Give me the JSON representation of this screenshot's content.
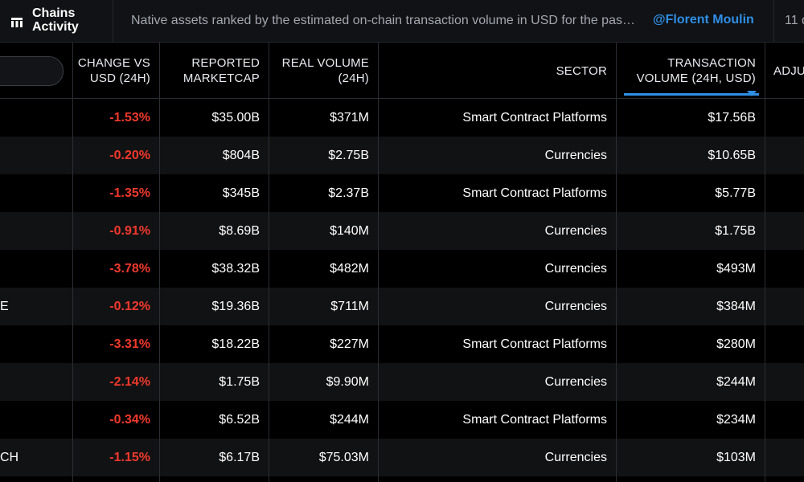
{
  "app": {
    "title": "Chains\nActivity",
    "subtitle": "Native assets ranked by the estimated on-chain transaction volume in USD for the past 24 hours",
    "author": "@Florent Moulin",
    "date": "11 d",
    "icon": "table-icon"
  },
  "colors": {
    "background": "#000000",
    "accent": "#2f8fe6",
    "negative": "#f0392b"
  },
  "table": {
    "headers": {
      "change": "CHANGE VS\nUSD (24H)",
      "marketcap": "REPORTED\nMARKETCAP",
      "real_volume": "REAL VOLUME\n(24H)",
      "sector": "SECTOR",
      "tx_volume": "TRANSACTION\nVOLUME (24H, USD)",
      "adjusted": "ADJU"
    },
    "sorted_column": "tx_volume",
    "sort_direction": "descending",
    "rows": [
      {
        "name": "",
        "change": "-1.53%",
        "marketcap": "$35.00B",
        "real_volume": "$371M",
        "sector": "Smart Contract Platforms",
        "tx_volume": "$17.56B"
      },
      {
        "name": "",
        "change": "-0.20%",
        "marketcap": "$804B",
        "real_volume": "$2.75B",
        "sector": "Currencies",
        "tx_volume": "$10.65B"
      },
      {
        "name": "",
        "change": "-1.35%",
        "marketcap": "$345B",
        "real_volume": "$2.37B",
        "sector": "Smart Contract Platforms",
        "tx_volume": "$5.77B"
      },
      {
        "name": "",
        "change": "-0.91%",
        "marketcap": "$8.69B",
        "real_volume": "$140M",
        "sector": "Currencies",
        "tx_volume": "$1.75B"
      },
      {
        "name": "",
        "change": "-3.78%",
        "marketcap": "$38.32B",
        "real_volume": "$482M",
        "sector": "Currencies",
        "tx_volume": "$493M"
      },
      {
        "name": "E",
        "change": "-0.12%",
        "marketcap": "$19.36B",
        "real_volume": "$711M",
        "sector": "Currencies",
        "tx_volume": "$384M"
      },
      {
        "name": "",
        "change": "-3.31%",
        "marketcap": "$18.22B",
        "real_volume": "$227M",
        "sector": "Smart Contract Platforms",
        "tx_volume": "$280M"
      },
      {
        "name": "",
        "change": "-2.14%",
        "marketcap": "$1.75B",
        "real_volume": "$9.90M",
        "sector": "Currencies",
        "tx_volume": "$244M"
      },
      {
        "name": "",
        "change": "-0.34%",
        "marketcap": "$6.52B",
        "real_volume": "$244M",
        "sector": "Smart Contract Platforms",
        "tx_volume": "$234M"
      },
      {
        "name": "CH",
        "change": "-1.15%",
        "marketcap": "$6.17B",
        "real_volume": "$75.03M",
        "sector": "Currencies",
        "tx_volume": "$103M"
      }
    ]
  }
}
